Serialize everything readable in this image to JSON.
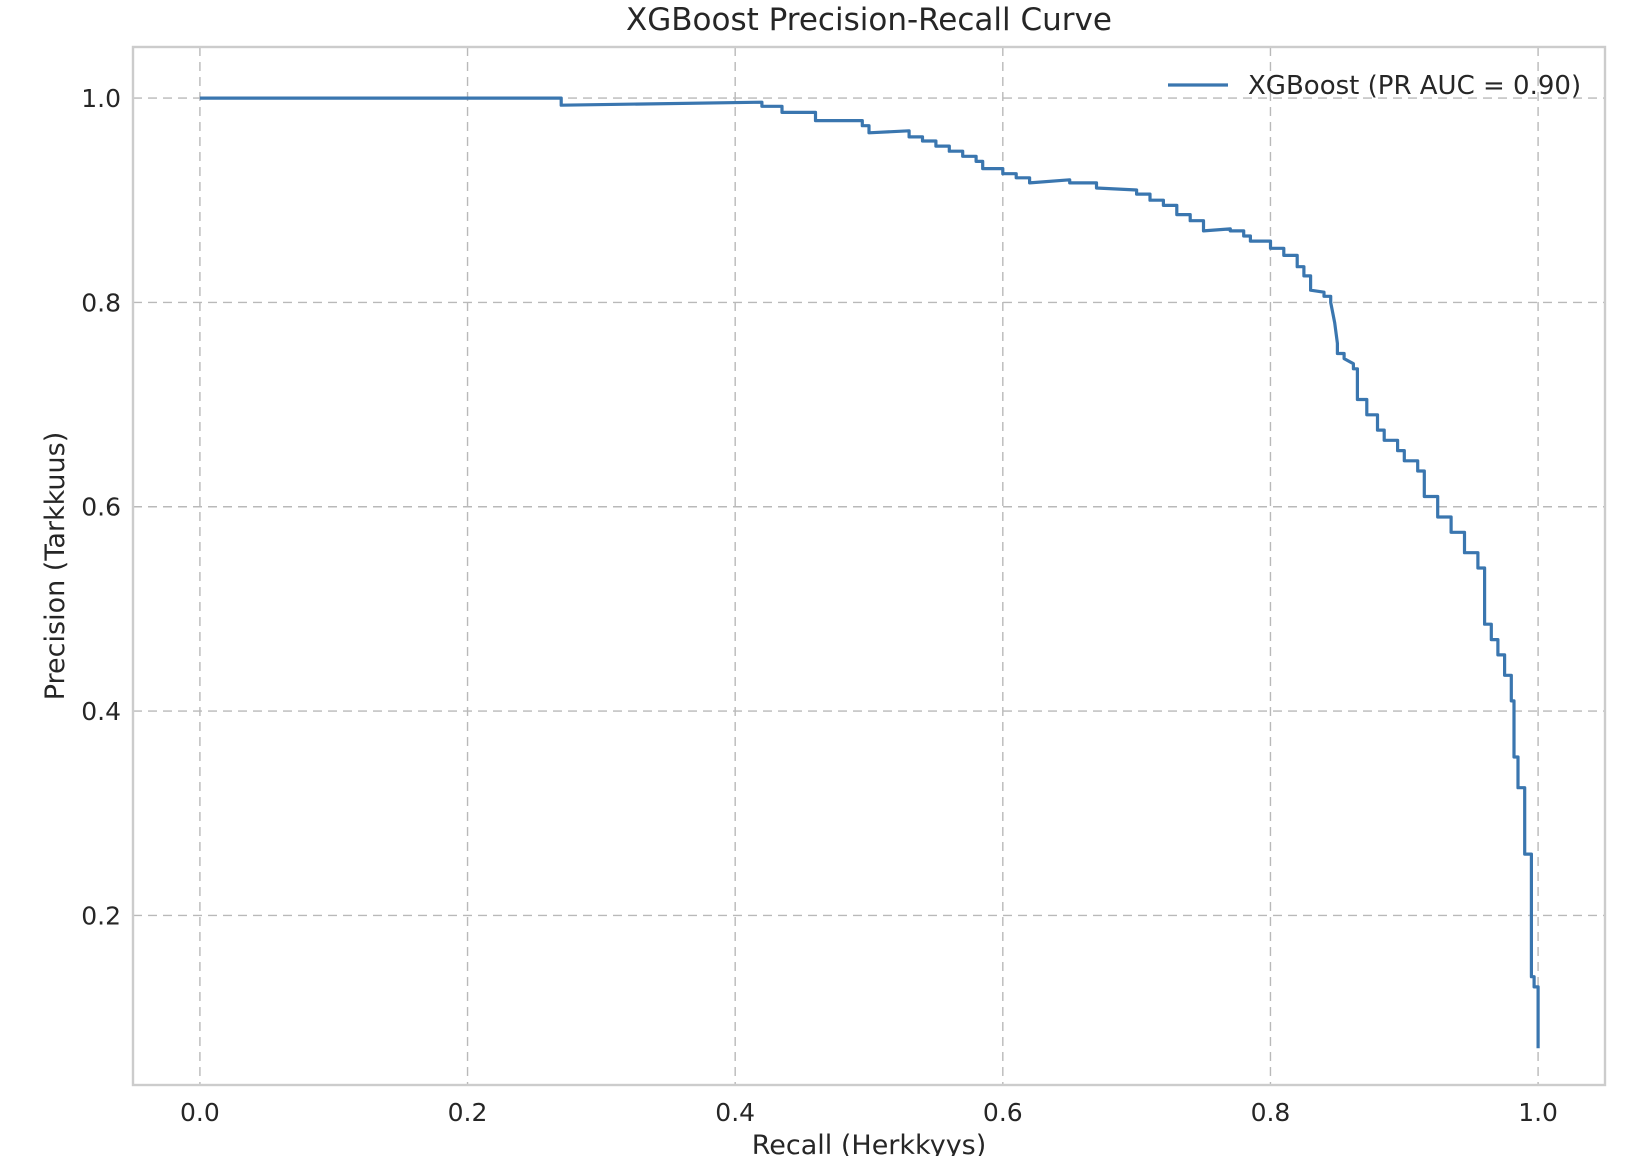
{
  "chart_data": {
    "type": "line",
    "title": "XGBoost Precision-Recall Curve",
    "xlabel": "Recall (Herkkyys)",
    "ylabel": "Precision (Tarkkuus)",
    "xlim": [
      -0.05,
      1.05
    ],
    "ylim": [
      0.034,
      1.05
    ],
    "xticks": [
      0.0,
      0.2,
      0.4,
      0.6,
      0.8,
      1.0
    ],
    "xtick_labels": [
      "0.0",
      "0.2",
      "0.4",
      "0.6",
      "0.8",
      "1.0"
    ],
    "yticks": [
      0.2,
      0.4,
      0.6,
      0.8,
      1.0
    ],
    "ytick_labels": [
      "0.2",
      "0.4",
      "0.6",
      "0.8",
      "1.0"
    ],
    "grid": true,
    "legend": {
      "position": "top-right"
    },
    "colors": {
      "series": "#3a76af",
      "grid": "#b9b9b9",
      "frame": "#cccccc",
      "text": "#262626"
    },
    "series": [
      {
        "name": "XGBoost (PR AUC = 0.90)",
        "x": [
          0.0,
          0.27,
          0.27,
          0.42,
          0.42,
          0.435,
          0.435,
          0.46,
          0.46,
          0.495,
          0.495,
          0.5,
          0.5,
          0.53,
          0.53,
          0.54,
          0.54,
          0.55,
          0.55,
          0.56,
          0.56,
          0.57,
          0.57,
          0.58,
          0.58,
          0.585,
          0.585,
          0.6,
          0.6,
          0.61,
          0.61,
          0.62,
          0.62,
          0.65,
          0.65,
          0.67,
          0.67,
          0.7,
          0.7,
          0.71,
          0.71,
          0.72,
          0.72,
          0.73,
          0.73,
          0.74,
          0.74,
          0.75,
          0.75,
          0.77,
          0.77,
          0.78,
          0.78,
          0.785,
          0.785,
          0.8,
          0.8,
          0.81,
          0.81,
          0.82,
          0.82,
          0.825,
          0.825,
          0.83,
          0.83,
          0.84,
          0.84,
          0.845,
          0.845,
          0.848,
          0.85,
          0.85,
          0.855,
          0.855,
          0.862,
          0.862,
          0.865,
          0.865,
          0.872,
          0.872,
          0.88,
          0.88,
          0.885,
          0.885,
          0.895,
          0.895,
          0.9,
          0.9,
          0.91,
          0.91,
          0.915,
          0.915,
          0.925,
          0.925,
          0.935,
          0.935,
          0.945,
          0.945,
          0.955,
          0.955,
          0.96,
          0.96,
          0.965,
          0.965,
          0.97,
          0.97,
          0.975,
          0.975,
          0.98,
          0.98,
          0.982,
          0.982,
          0.985,
          0.985,
          0.99,
          0.99,
          0.995,
          0.995,
          0.997,
          0.997,
          1.0,
          1.0
        ],
        "y": [
          1.0,
          1.0,
          0.993,
          0.996,
          0.992,
          0.992,
          0.986,
          0.986,
          0.978,
          0.978,
          0.973,
          0.973,
          0.966,
          0.968,
          0.962,
          0.962,
          0.958,
          0.958,
          0.953,
          0.953,
          0.948,
          0.948,
          0.943,
          0.943,
          0.938,
          0.938,
          0.931,
          0.931,
          0.926,
          0.926,
          0.922,
          0.922,
          0.917,
          0.92,
          0.917,
          0.917,
          0.912,
          0.91,
          0.906,
          0.906,
          0.9,
          0.9,
          0.895,
          0.895,
          0.886,
          0.886,
          0.88,
          0.88,
          0.87,
          0.872,
          0.87,
          0.87,
          0.865,
          0.865,
          0.86,
          0.86,
          0.853,
          0.853,
          0.846,
          0.846,
          0.835,
          0.835,
          0.826,
          0.826,
          0.812,
          0.81,
          0.806,
          0.806,
          0.8,
          0.78,
          0.76,
          0.75,
          0.75,
          0.745,
          0.74,
          0.735,
          0.735,
          0.705,
          0.705,
          0.69,
          0.69,
          0.675,
          0.675,
          0.665,
          0.665,
          0.655,
          0.655,
          0.645,
          0.645,
          0.635,
          0.635,
          0.61,
          0.61,
          0.59,
          0.59,
          0.575,
          0.575,
          0.555,
          0.555,
          0.54,
          0.54,
          0.485,
          0.485,
          0.47,
          0.47,
          0.455,
          0.455,
          0.435,
          0.435,
          0.41,
          0.41,
          0.355,
          0.355,
          0.325,
          0.325,
          0.26,
          0.26,
          0.14,
          0.14,
          0.13,
          0.13,
          0.07
        ]
      }
    ]
  }
}
